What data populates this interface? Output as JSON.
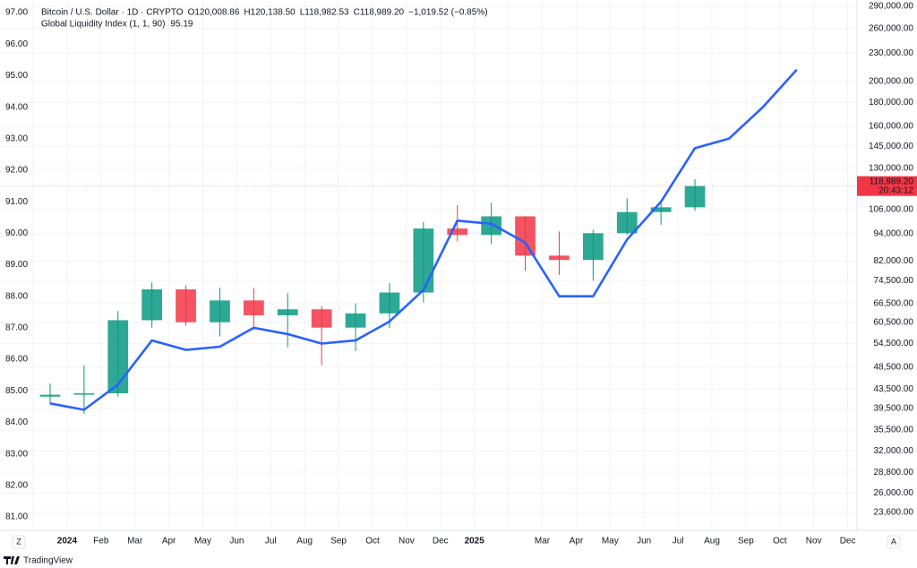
{
  "chart_data": {
    "type": "candlestick",
    "header": {
      "symbol": "Bitcoin / U.S. Dollar · 1D · CRYPTO",
      "o_label": "O",
      "open": "120,008.86",
      "h_label": "H",
      "high": "120,138.50",
      "l_label": "L",
      "low": "118,982.53",
      "c_label": "C",
      "close": "118,989.20",
      "change": "−1,019.52 (−0.85%)"
    },
    "categories": [
      null,
      "2024",
      "Feb",
      "Mar",
      "Apr",
      "May",
      "Jun",
      "Jul",
      "Aug",
      "Sep",
      "Oct",
      "Nov",
      "Dec",
      "2025",
      null,
      "Mar",
      "Apr",
      "May",
      "Jun",
      "Jul",
      "Aug",
      "Sep",
      "Oct",
      "Nov",
      "Dec"
    ],
    "series": [
      {
        "name": "Bitcoin / U.S. Dollar · 1D · CRYPTO",
        "type": "candlestick",
        "axis": "y2",
        "up_color": "#089981",
        "down_color": "#f23645",
        "open": [
          41900,
          42300,
          42600,
          61200,
          71300,
          60600,
          67500,
          62700,
          64600,
          59000,
          63300,
          70200,
          96400,
          93400,
          102400,
          84300,
          82500,
          94200,
          104600,
          107100,
          null,
          null,
          null,
          null,
          null
        ],
        "high": [
          44700,
          48900,
          64000,
          73800,
          72700,
          71900,
          71900,
          70000,
          65600,
          66500,
          73600,
          99500,
          108300,
          109500,
          102500,
          95000,
          95800,
          112000,
          110600,
          123100,
          null,
          null,
          null,
          null,
          null
        ],
        "low": [
          40500,
          38500,
          41900,
          59000,
          59600,
          56500,
          58400,
          53500,
          49000,
          52500,
          58900,
          66800,
          90500,
          89200,
          78200,
          76600,
          74400,
          93400,
          98200,
          105300,
          null,
          null,
          null,
          null,
          null
        ],
        "close": [
          42300,
          42600,
          61200,
          71300,
          60600,
          67500,
          62700,
          64600,
          59000,
          63300,
          70200,
          96400,
          93400,
          102400,
          84300,
          82500,
          94200,
          104600,
          107100,
          118989.2,
          null,
          null,
          null,
          null,
          null
        ]
      },
      {
        "name": "Global Liquidity Index (1, 1, 90)",
        "type": "line",
        "color": "#2962ff",
        "values": [
          84.6,
          84.4,
          85.2,
          86.6,
          86.3,
          86.4,
          87.0,
          86.8,
          86.5,
          86.6,
          87.2,
          88.2,
          90.4,
          90.3,
          89.7,
          88.0,
          88.0,
          89.8,
          91.0,
          92.7,
          93.0,
          94.0,
          95.19,
          null,
          null
        ]
      }
    ],
    "ylim": [
      80.63,
      97.4
    ],
    "yticks": [
      {
        "value": 81,
        "label": "81.00"
      },
      {
        "value": 82,
        "label": "82.00"
      },
      {
        "value": 83,
        "label": "83.00"
      },
      {
        "value": 84,
        "label": "84.00"
      },
      {
        "value": 85,
        "label": "85.00"
      },
      {
        "value": 86,
        "label": "86.00"
      },
      {
        "value": 87,
        "label": "87.00"
      },
      {
        "value": 88,
        "label": "88.00"
      },
      {
        "value": 89,
        "label": "89.00"
      },
      {
        "value": 90,
        "label": "90.00"
      },
      {
        "value": 91,
        "label": "91.00"
      },
      {
        "value": 92,
        "label": "92.00"
      },
      {
        "value": 93,
        "label": "93.00"
      },
      {
        "value": 94,
        "label": "94.00"
      },
      {
        "value": 95,
        "label": "95.00"
      },
      {
        "value": 96,
        "label": "96.00"
      },
      {
        "value": 97,
        "label": "97.00"
      }
    ],
    "y2lim": [
      21790,
      299200
    ],
    "y2_log": true,
    "y2ticks": [
      {
        "value": 290000,
        "label": "290,000.00"
      },
      {
        "value": 260000,
        "label": "260,000.00"
      },
      {
        "value": 230000,
        "label": "230,000.00"
      },
      {
        "value": 200000,
        "label": "200,000.00"
      },
      {
        "value": 180000,
        "label": "180,000.00"
      },
      {
        "value": 160000,
        "label": "160,000.00"
      },
      {
        "value": 145000,
        "label": "145,000.00"
      },
      {
        "value": 130000,
        "label": "130,000.00"
      },
      {
        "value": 106000,
        "label": "106,000.00"
      },
      {
        "value": 94000,
        "label": "94,000.00"
      },
      {
        "value": 82000,
        "label": "82,000.00"
      },
      {
        "value": 74500,
        "label": "74,500.00"
      },
      {
        "value": 66500,
        "label": "66,500.00"
      },
      {
        "value": 60500,
        "label": "60,500.00"
      },
      {
        "value": 54500,
        "label": "54,500.00"
      },
      {
        "value": 48500,
        "label": "48,500.00"
      },
      {
        "value": 43500,
        "label": "43,500.00"
      },
      {
        "value": 39500,
        "label": "39,500.00"
      },
      {
        "value": 35500,
        "label": "35,500.00"
      },
      {
        "value": 32000,
        "label": "32,000.00"
      },
      {
        "value": 28800,
        "label": "28,800.00"
      },
      {
        "value": 26000,
        "label": "26,000.00"
      },
      {
        "value": 23600,
        "label": "23,600.00"
      }
    ],
    "price_tag": {
      "value": 118989.2,
      "label": "118,989.20",
      "time": "20:43:12",
      "color": "#f23645"
    },
    "grid": true
  },
  "ui": {
    "zoom_button": "Z",
    "auto_button": "A",
    "brand": "TradingView"
  }
}
